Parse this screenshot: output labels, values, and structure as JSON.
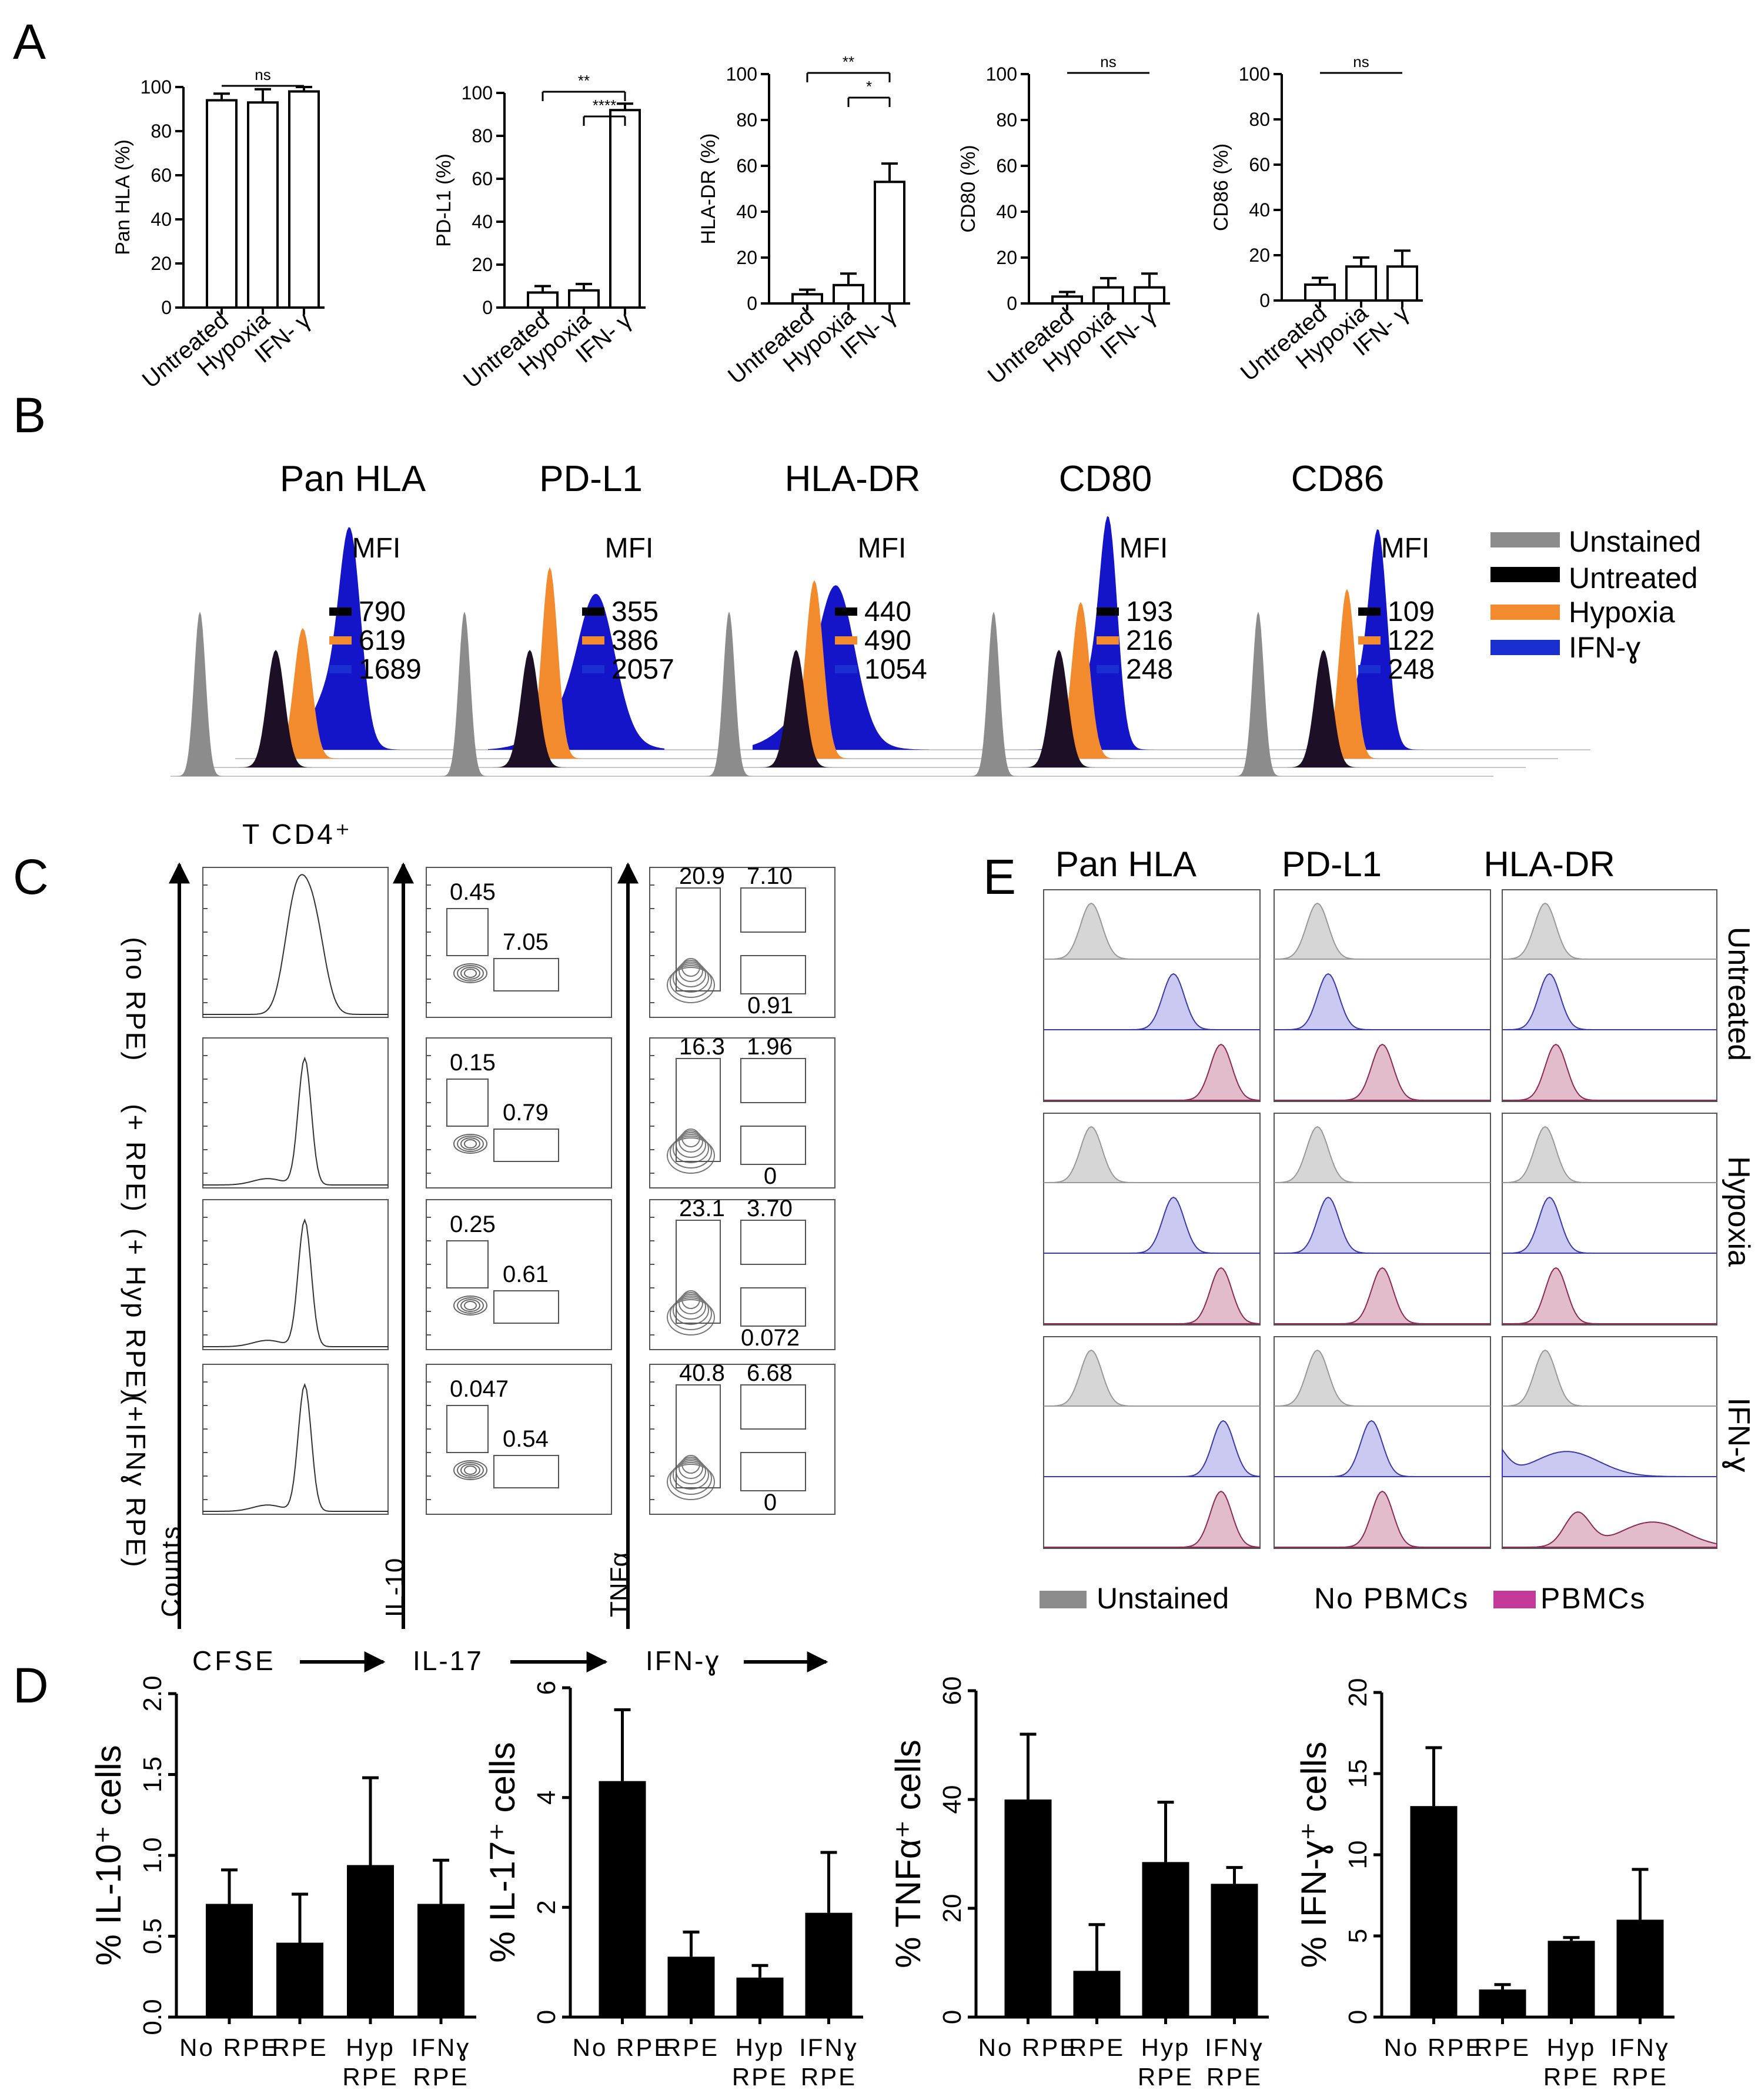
{
  "panel_labels": {
    "a": "A",
    "b": "B",
    "c": "C",
    "d": "D",
    "e": "E"
  },
  "colors": {
    "unstained": "#8c8c8c",
    "untreated": "#1c0f26",
    "hypoxia": "#f28a2e",
    "ifng": "#1414c8",
    "pbmc": "#c33a9a",
    "e_unstained_fill": "#d4d4d4",
    "e_nopbmc_fill": "#c9c9f2",
    "e_pbmc_fill": "#e2bccb"
  },
  "chart_data": [
    {
      "id": "A1",
      "type": "bar",
      "panel": "A",
      "categories": [
        "Untreated",
        "Hypoxia",
        "IFN- γ"
      ],
      "values": [
        94,
        93,
        98
      ],
      "errors": [
        3,
        6,
        2
      ],
      "ylabel": "Pan HLA (%)",
      "ylim": [
        0,
        100
      ],
      "yticks": [
        0,
        20,
        40,
        60,
        80,
        100
      ],
      "annotations": [
        {
          "from": 0,
          "to": 2,
          "label": "ns"
        }
      ]
    },
    {
      "id": "A2",
      "type": "bar",
      "panel": "A",
      "categories": [
        "Untreated",
        "Hypoxia",
        "IFN- γ"
      ],
      "values": [
        7,
        8,
        92
      ],
      "errors": [
        3,
        3,
        3
      ],
      "ylabel": "PD-L1 (%)",
      "ylim": [
        0,
        100
      ],
      "yticks": [
        0,
        20,
        40,
        60,
        80,
        100
      ],
      "annotations": [
        {
          "from": 0,
          "to": 2,
          "label": "**"
        },
        {
          "from": 1,
          "to": 2,
          "label": "****"
        }
      ]
    },
    {
      "id": "A3",
      "type": "bar",
      "panel": "A",
      "categories": [
        "Untreated",
        "Hypoxia",
        "IFN- γ"
      ],
      "values": [
        4,
        8,
        53
      ],
      "errors": [
        2,
        5,
        8
      ],
      "ylabel": "HLA-DR (%)",
      "ylim": [
        0,
        100
      ],
      "yticks": [
        0,
        20,
        40,
        60,
        80,
        100
      ],
      "annotations": [
        {
          "from": 0,
          "to": 2,
          "label": "**"
        },
        {
          "from": 1,
          "to": 2,
          "label": "*"
        }
      ]
    },
    {
      "id": "A4",
      "type": "bar",
      "panel": "A",
      "categories": [
        "Untreated",
        "Hypoxia",
        "IFN- γ"
      ],
      "values": [
        3,
        7,
        7
      ],
      "errors": [
        2,
        4,
        6
      ],
      "ylabel": "CD80 (%)",
      "ylim": [
        0,
        100
      ],
      "yticks": [
        0,
        20,
        40,
        60,
        80,
        100
      ],
      "annotations": [
        {
          "from": 0,
          "to": 2,
          "label": "ns"
        }
      ]
    },
    {
      "id": "A5",
      "type": "bar",
      "panel": "A",
      "categories": [
        "Untreated",
        "Hypoxia",
        "IFN- γ"
      ],
      "values": [
        7,
        15,
        15
      ],
      "errors": [
        3,
        4,
        7
      ],
      "ylabel": "CD86 (%)",
      "ylim": [
        0,
        100
      ],
      "yticks": [
        0,
        20,
        40,
        60,
        80,
        100
      ],
      "annotations": [
        {
          "from": 0,
          "to": 2,
          "label": "ns"
        }
      ]
    },
    {
      "id": "D1",
      "type": "bar",
      "panel": "D",
      "categories": [
        "No RPE",
        "RPE",
        "Hyp RPE",
        "IFNɣ RPE"
      ],
      "values": [
        0.7,
        0.46,
        0.94,
        0.7
      ],
      "errors": [
        0.21,
        0.3,
        0.54,
        0.27
      ],
      "ylabel": "% IL-10⁺ cells",
      "ylim": [
        0,
        2.0
      ],
      "yticks": [
        0.0,
        0.5,
        1.0,
        1.5,
        2.0
      ],
      "ytick_labels": [
        "0.0",
        "0.5",
        "1.0",
        "1.5",
        "2.0"
      ]
    },
    {
      "id": "D2",
      "type": "bar",
      "panel": "D",
      "categories": [
        "No RPE",
        "RPE",
        "Hyp RPE",
        "IFNɣ RPE"
      ],
      "values": [
        4.3,
        1.1,
        0.72,
        1.9
      ],
      "errors": [
        1.3,
        0.45,
        0.22,
        1.1
      ],
      "ylabel": "% IL-17⁺ cells",
      "ylim": [
        0,
        6
      ],
      "yticks": [
        0,
        2,
        4,
        6
      ],
      "ytick_labels": [
        "0",
        "2",
        "4",
        "6"
      ]
    },
    {
      "id": "D3",
      "type": "bar",
      "panel": "D",
      "categories": [
        "No RPE",
        "RPE",
        "Hyp RPE",
        "IFNɣ RPE"
      ],
      "values": [
        40,
        8.5,
        28.5,
        24.5
      ],
      "errors": [
        12,
        8.5,
        11,
        3
      ],
      "ylabel": "% TNFα⁺ cells",
      "ylim": [
        0,
        60
      ],
      "yticks": [
        0,
        20,
        40,
        60
      ],
      "ytick_labels": [
        "0",
        "20",
        "40",
        "60"
      ]
    },
    {
      "id": "D4",
      "type": "bar",
      "panel": "D",
      "categories": [
        "No RPE",
        "RPE",
        "Hyp RPE",
        "IFNɣ RPE"
      ],
      "values": [
        13,
        1.7,
        4.7,
        6.0
      ],
      "errors": [
        3.6,
        0.3,
        0.2,
        3.1
      ],
      "ylabel": "% IFN-ɣ⁺ cells",
      "ylim": [
        0,
        20
      ],
      "yticks": [
        0,
        5,
        10,
        15,
        20
      ],
      "ytick_labels": [
        "0",
        "5",
        "10",
        "15",
        "20"
      ]
    }
  ],
  "panel_b": {
    "markers": [
      {
        "title": "Pan HLA",
        "mfi_untreated": "790",
        "mfi_hypoxia": "619",
        "mfi_ifng": "1689"
      },
      {
        "title": "PD-L1",
        "mfi_untreated": "355",
        "mfi_hypoxia": "386",
        "mfi_ifng": "2057"
      },
      {
        "title": "HLA-DR",
        "mfi_untreated": "440",
        "mfi_hypoxia": "490",
        "mfi_ifng": "1054"
      },
      {
        "title": "CD80",
        "mfi_untreated": "193",
        "mfi_hypoxia": "216",
        "mfi_ifng": "248"
      },
      {
        "title": "CD86",
        "mfi_untreated": "109",
        "mfi_hypoxia": "122",
        "mfi_ifng": "248"
      }
    ],
    "mfi_label": "MFI",
    "legend": [
      "Unstained",
      "Untreated",
      "Hypoxia",
      "IFN-ɣ"
    ]
  },
  "panel_c": {
    "title": "T CD4⁺",
    "row_labels": [
      "(no RPE)",
      "(+ RPE)",
      "(+ Hyp RPE)",
      "(+IFNɣ RPE)"
    ],
    "axis_counts": "Counts",
    "axis_il10": "IL-10",
    "axis_tnfa": "TNFα",
    "x_labels": [
      "CFSE",
      "IL-17",
      "IFN-ɣ"
    ],
    "il10_il17": [
      {
        "top": "0.45",
        "right": "7.05"
      },
      {
        "top": "0.15",
        "right": "0.79"
      },
      {
        "top": "0.25",
        "right": "0.61"
      },
      {
        "top": "0.047",
        "right": "0.54"
      }
    ],
    "tnf_ifng": [
      {
        "tl": "20.9",
        "tr": "7.10",
        "br": "0.91"
      },
      {
        "tl": "16.3",
        "tr": "1.96",
        "br": "0"
      },
      {
        "tl": "23.1",
        "tr": "3.70",
        "br": "0.072"
      },
      {
        "tl": "40.8",
        "tr": "6.68",
        "br": "0"
      }
    ]
  },
  "panel_e": {
    "columns": [
      "Pan HLA",
      "PD-L1",
      "HLA-DR"
    ],
    "rows": [
      "Untreated",
      "Hypoxia",
      "IFN-ɣ"
    ],
    "legend": {
      "unstained": "Unstained",
      "no_pbmcs": "No PBMCs",
      "pbmcs": "PBMCs"
    }
  }
}
